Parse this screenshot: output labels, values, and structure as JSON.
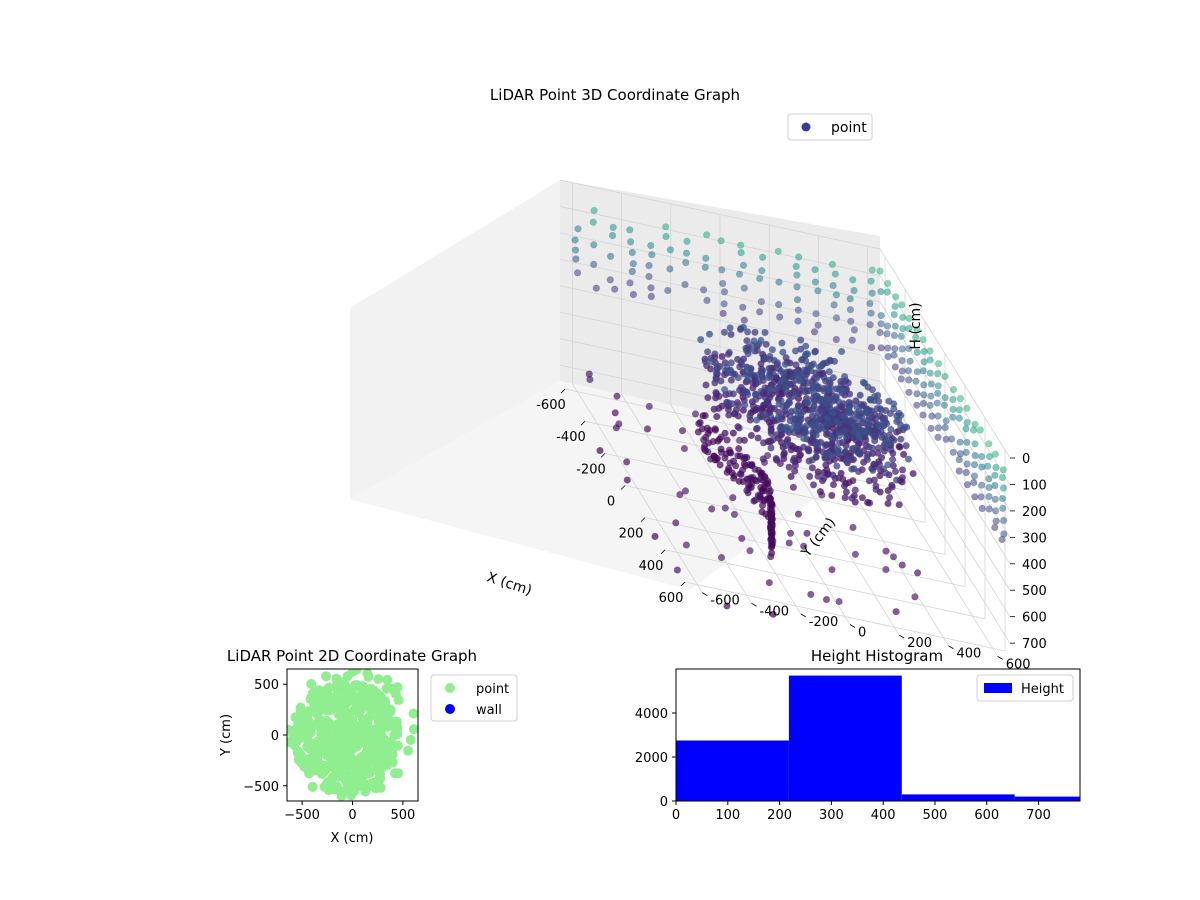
{
  "figure": {
    "background": "#ffffff"
  },
  "chart_data": [
    {
      "type": "scatter",
      "projection": "3d",
      "title": "LiDAR Point 3D Coordinate Graph",
      "xlabel": "X (cm)",
      "ylabel": "Y (cm)",
      "zlabel": "H (cm)",
      "xlim": [
        -650,
        650
      ],
      "ylim": [
        -650,
        650
      ],
      "zlim": [
        0,
        760
      ],
      "z_axis_inverted": true,
      "xticks": [
        -600,
        -400,
        -200,
        0,
        200,
        400,
        600
      ],
      "yticks": [
        -600,
        -400,
        -200,
        0,
        200,
        400,
        600
      ],
      "zticks": [
        0,
        100,
        200,
        300,
        400,
        500,
        600,
        700
      ],
      "grid": true,
      "legend": {
        "position": "top-right",
        "entries": [
          "point"
        ]
      },
      "colormap": "viridis",
      "color_by": "height",
      "marker_color_legend": "#3b3b8f",
      "series": [
        {
          "name": "point",
          "x_range": [
            -650,
            650
          ],
          "y_range": [
            -650,
            650
          ],
          "h_range": [
            0,
            760
          ]
        }
      ]
    },
    {
      "type": "scatter",
      "title": "LiDAR Point 2D Coordinate Graph",
      "xlabel": "X (cm)",
      "ylabel": "Y (cm)",
      "xlim": [
        -650,
        650
      ],
      "ylim": [
        -650,
        650
      ],
      "xticks": [
        -500,
        0,
        500
      ],
      "yticks": [
        -500,
        0,
        500
      ],
      "grid": false,
      "legend": {
        "position": "outside-right",
        "entries": [
          "point",
          "wall"
        ]
      },
      "series": [
        {
          "name": "point",
          "color": "#90ee90"
        },
        {
          "name": "wall",
          "color": "#0000ff"
        }
      ]
    },
    {
      "type": "bar",
      "subtype": "histogram",
      "title": "Height Histogram",
      "xlabel": "",
      "ylabel": "",
      "xlim": [
        0,
        780
      ],
      "ylim": [
        0,
        6000
      ],
      "xticks": [
        0,
        100,
        200,
        300,
        400,
        500,
        600,
        700
      ],
      "yticks": [
        0,
        2000,
        4000
      ],
      "bin_edges": [
        0,
        218,
        436,
        654,
        780
      ],
      "values": [
        2750,
        5700,
        300,
        200
      ],
      "color": "#0000ff",
      "legend": {
        "position": "top-right",
        "entries": [
          "Height"
        ]
      },
      "series": [
        {
          "name": "Height",
          "color": "#0000ff"
        }
      ]
    }
  ]
}
